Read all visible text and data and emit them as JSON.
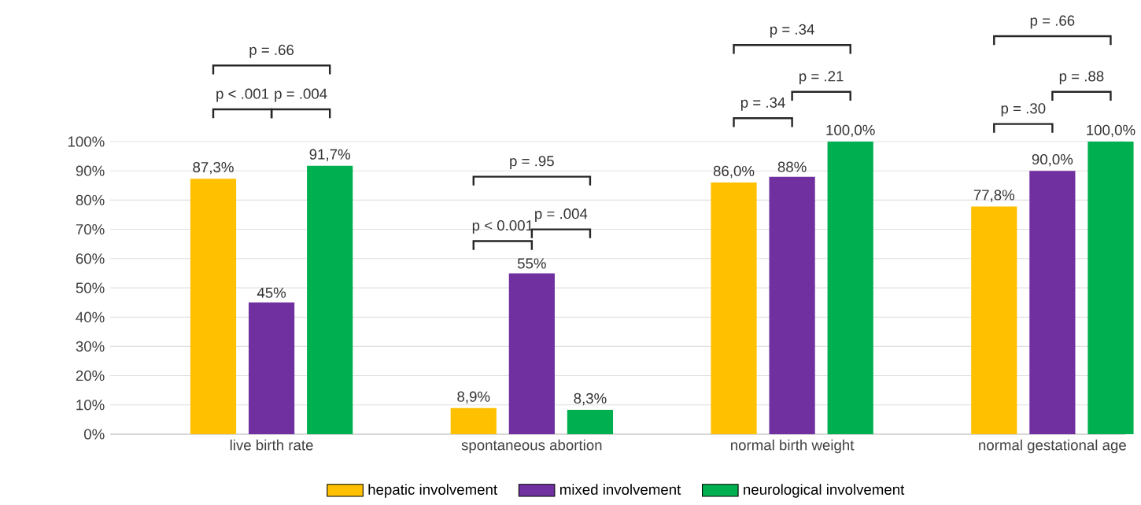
{
  "chart_data": {
    "type": "bar",
    "categories": [
      "live birth rate",
      "spontaneous abortion",
      "normal birth weight",
      "normal gestational age"
    ],
    "series": [
      {
        "name": "hepatic involvement",
        "color": "#ffc000",
        "values": [
          87.3,
          8.9,
          86.0,
          77.8
        ],
        "value_labels": [
          "87,3%",
          "8,9%",
          "86,0%",
          "77,8%"
        ]
      },
      {
        "name": "mixed involvement",
        "color": "#7030a0",
        "values": [
          45,
          55,
          88,
          90.0
        ],
        "value_labels": [
          "45%",
          "55%",
          "88%",
          "90,0%"
        ]
      },
      {
        "name": "neurological involvement",
        "color": "#00b050",
        "values": [
          91.7,
          8.3,
          100,
          100
        ],
        "value_labels": [
          "91,7%",
          "8,3%",
          "100,0%",
          "100,0%"
        ]
      }
    ],
    "ylim": [
      0,
      100
    ],
    "yticks": [
      {
        "value": 0,
        "label": "0%"
      },
      {
        "value": 10,
        "label": "10%"
      },
      {
        "value": 20,
        "label": "20%"
      },
      {
        "value": 30,
        "label": "30%"
      },
      {
        "value": 40,
        "label": "40%"
      },
      {
        "value": 50,
        "label": "50%"
      },
      {
        "value": 60,
        "label": "60%"
      },
      {
        "value": 70,
        "label": "70%"
      },
      {
        "value": 80,
        "label": "80%"
      },
      {
        "value": 90,
        "label": "90%"
      },
      {
        "value": 100,
        "label": "100%"
      }
    ],
    "grid": "y",
    "legend": "bottom",
    "annotations": [
      "p = .66",
      "p < .001",
      "p = .004",
      "p = .95",
      "p < 0.001",
      "p = .004",
      "p = .34",
      "p = .21",
      "p = .34",
      "p = .66",
      "p = .88",
      "p = .30"
    ]
  }
}
